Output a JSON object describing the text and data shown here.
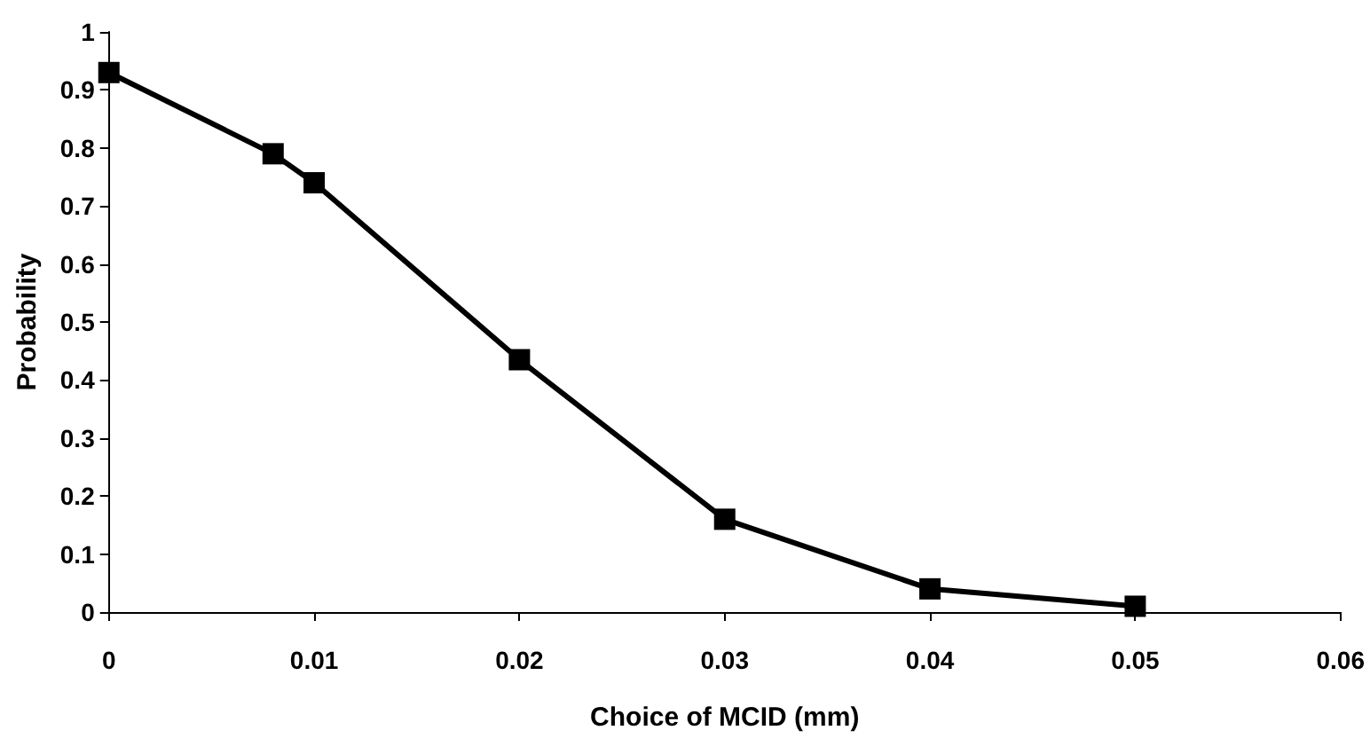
{
  "chart_data": {
    "type": "line",
    "xlabel": "Choice of MCID (mm)",
    "ylabel": "Probability",
    "x": [
      0,
      0.008,
      0.01,
      0.02,
      0.03,
      0.04,
      0.05
    ],
    "series": [
      {
        "color": "#000000",
        "values": [
          0.93,
          0.79,
          0.74,
          0.435,
          0.16,
          0.04,
          0.01
        ]
      }
    ],
    "xlim": [
      0,
      0.06
    ],
    "xticks": [
      0,
      0.01,
      0.02,
      0.03,
      0.04,
      0.05,
      0.06
    ],
    "ylim": [
      0,
      1
    ],
    "yticks": [
      0,
      0.1,
      0.2,
      0.3,
      0.4,
      0.5,
      0.6,
      0.7,
      0.8,
      0.9,
      1
    ],
    "grid": false,
    "marker": "square",
    "line_style": "solid"
  }
}
